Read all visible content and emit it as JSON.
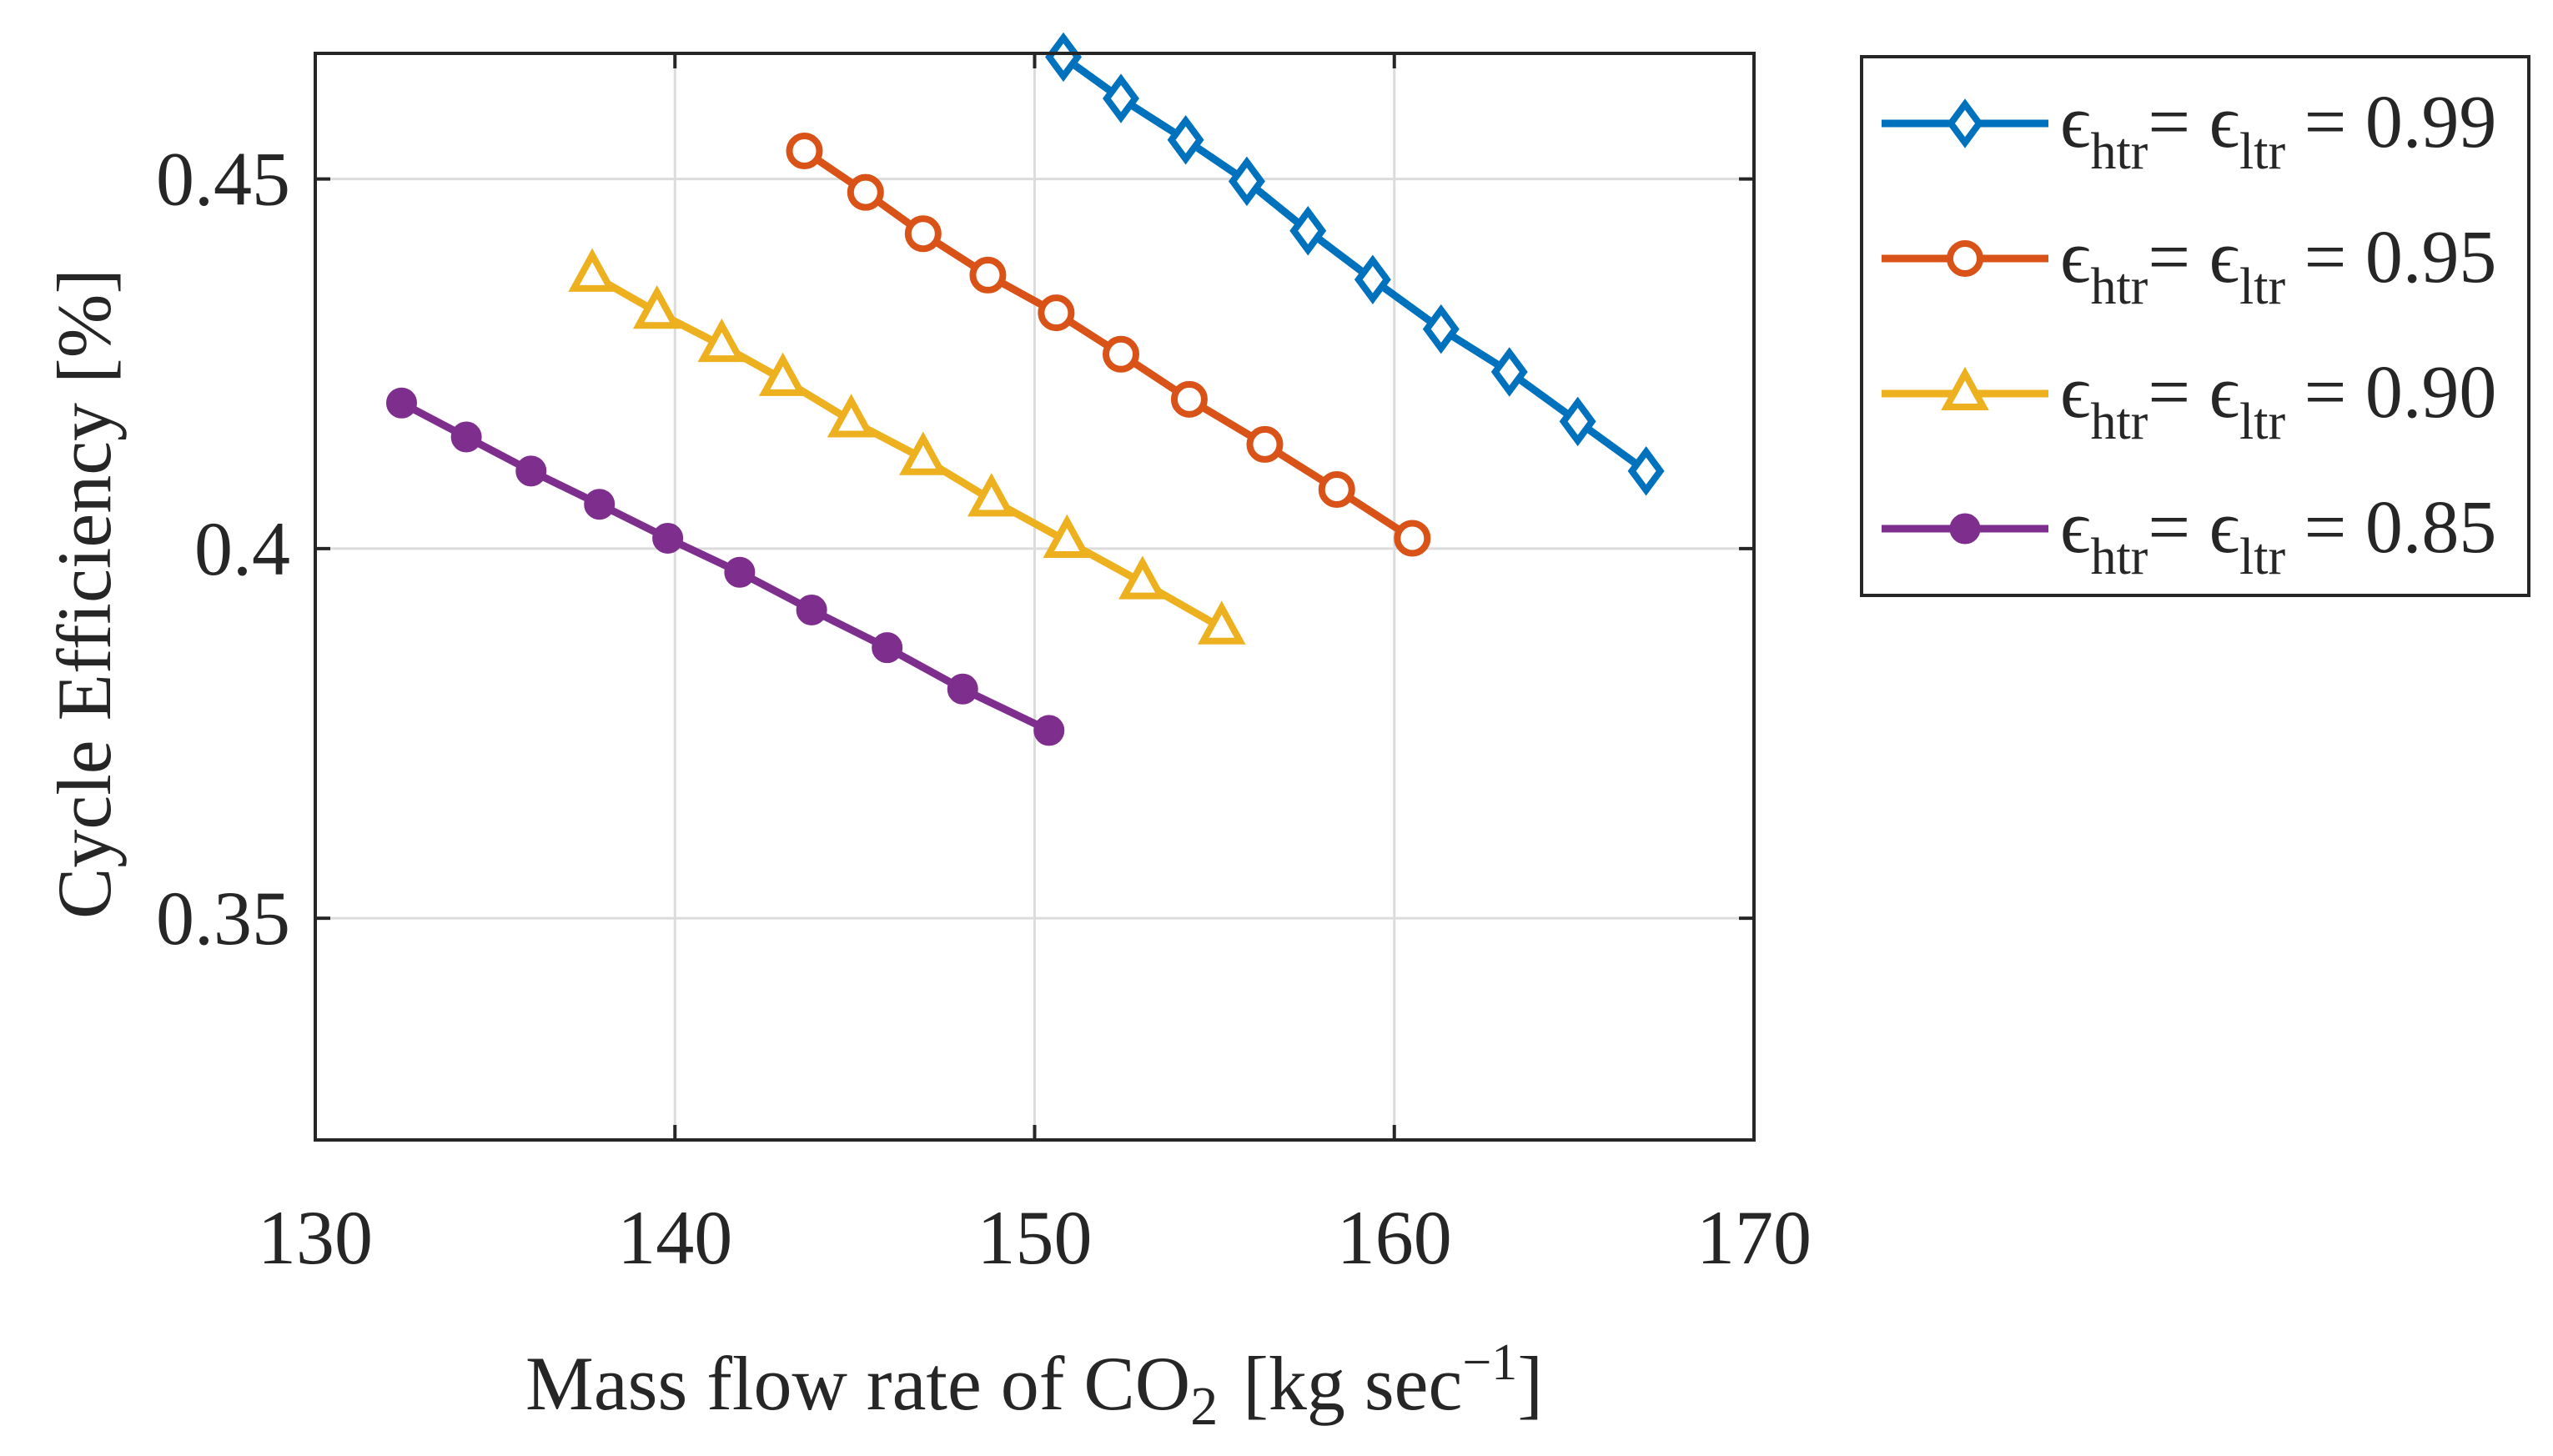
{
  "chart_data": {
    "type": "line",
    "xlabel": {
      "main": "Mass flow rate of CO",
      "sub": "2",
      "unit_pre": "[kg sec",
      "sup": "−1",
      "unit_post": "]"
    },
    "ylabel": "Cycle Efficiency [%]",
    "xlim": [
      130,
      170
    ],
    "ylim": [
      0.32,
      0.467
    ],
    "xticks": [
      130,
      140,
      150,
      160,
      170
    ],
    "xtick_labels": [
      "130",
      "140",
      "150",
      "160",
      "170"
    ],
    "yticks": [
      0.35,
      0.4,
      0.45
    ],
    "ytick_labels": [
      "0.35",
      "0.4",
      "0.45"
    ],
    "grid": true,
    "legend_position": "outside-right-top",
    "legend_text": {
      "sym": "ϵ",
      "sub1": "htr",
      "eq1": "= ",
      "sub2": "ltr",
      "eq2": " = "
    },
    "series": [
      {
        "value_label": "0.99",
        "color": "#0072BD",
        "marker": "diamond",
        "x": [
          150.8,
          152.4,
          154.2,
          155.9,
          157.6,
          159.4,
          161.3,
          163.2,
          165.1,
          167.0
        ],
        "y": [
          0.4665,
          0.4609,
          0.4553,
          0.4497,
          0.443,
          0.4364,
          0.4297,
          0.4239,
          0.4172,
          0.4105
        ]
      },
      {
        "value_label": "0.95",
        "color": "#D95319",
        "marker": "circle",
        "x": [
          143.6,
          145.3,
          146.9,
          148.7,
          150.6,
          152.4,
          154.3,
          156.4,
          158.4,
          160.5
        ],
        "y": [
          0.4538,
          0.4482,
          0.4426,
          0.437,
          0.4319,
          0.4263,
          0.4202,
          0.4141,
          0.408,
          0.4014
        ]
      },
      {
        "value_label": "0.90",
        "color": "#EDB120",
        "marker": "triangle",
        "x": [
          137.7,
          139.5,
          141.3,
          143.0,
          144.9,
          146.9,
          148.8,
          150.9,
          153.0,
          155.2
        ],
        "y": [
          0.437,
          0.432,
          0.4275,
          0.4229,
          0.4173,
          0.4122,
          0.4066,
          0.401,
          0.3954,
          0.3893
        ]
      },
      {
        "value_label": "0.85",
        "color": "#7E2F8E",
        "marker": "filled-circle",
        "x": [
          132.4,
          134.2,
          136.0,
          137.9,
          139.8,
          141.8,
          143.8,
          145.9,
          148.0,
          150.4
        ],
        "y": [
          0.4197,
          0.4151,
          0.4105,
          0.406,
          0.4014,
          0.3968,
          0.3917,
          0.3866,
          0.381,
          0.3754
        ]
      }
    ]
  }
}
